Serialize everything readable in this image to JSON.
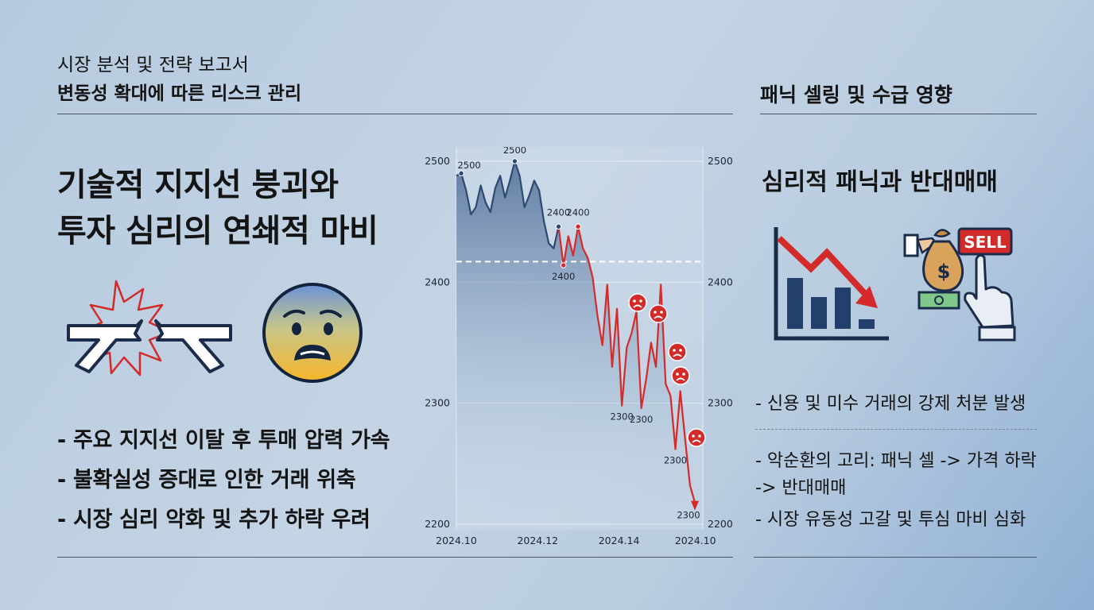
{
  "header": {
    "subtitle1": "시장 분석 및 전략 보고서",
    "subtitle2": "변동성 확대에 따른 리스크 관리",
    "right_title": "패닉 셀링 및 수급 영향"
  },
  "left": {
    "headline_line1": "기술적 지지선 붕괴와",
    "headline_line2": "투자 심리의 연쇄적 마비",
    "bullets": [
      "- 주요 지지선 이탈 후 투매 압력 가속",
      "- 불확실성 증대로 인한 거래 위축",
      "- 시장 심리 악화 및 추가 하락 우려"
    ]
  },
  "right": {
    "heading": "심리적 패닉과 반대매매",
    "sell_label": "SELL",
    "bullets": [
      "- 신용 및 미수 거래의 강제 처분 발생",
      "- 악순환의 고리: 패닉 셀 -> 가격 하락",
      "-> 반대매매",
      "- 시장 유동성 고갈 및 투심 마비 심화"
    ]
  },
  "icons": {
    "broken_line": "broken-support-line-icon",
    "anxious_face": "anxious-face-icon",
    "panic_face": "panic-face-icon",
    "falling_chart": "falling-bar-chart-icon",
    "money_sell": "money-sell-hand-icon"
  },
  "colors": {
    "up_line": "#2d4a72",
    "down_line": "#d42a2a",
    "support_line": "#ffffff",
    "accent_red": "#d23030"
  },
  "chart_data": {
    "type": "line",
    "y_ticks": [
      "2500",
      "2400",
      "2300",
      "2200"
    ],
    "x_ticks": [
      "2024.10",
      "2024.12",
      "2024.14",
      "2024.10"
    ],
    "ylim": [
      2200,
      2500
    ],
    "support_level": 2417,
    "series": [
      {
        "values": [
          2488,
          2490,
          2476,
          2456,
          2462,
          2480,
          2466,
          2458,
          2478,
          2488,
          2470,
          2484,
          2500,
          2488,
          2462,
          2472,
          2484,
          2476,
          2450,
          2432,
          2428,
          2446
        ]
      },
      {
        "values": [
          2446,
          2414,
          2438,
          2422,
          2446,
          2428,
          2420,
          2404,
          2372,
          2348,
          2398,
          2330,
          2378,
          2298,
          2346,
          2358,
          2376,
          2296,
          2320,
          2350,
          2330,
          2398,
          2316,
          2306,
          2262,
          2310,
          2270,
          2232,
          2218
        ]
      }
    ],
    "point_labels": [
      "2500",
      "2500",
      "2400",
      "2400",
      "2400",
      "2300",
      "2300",
      "2300",
      "2300"
    ]
  }
}
